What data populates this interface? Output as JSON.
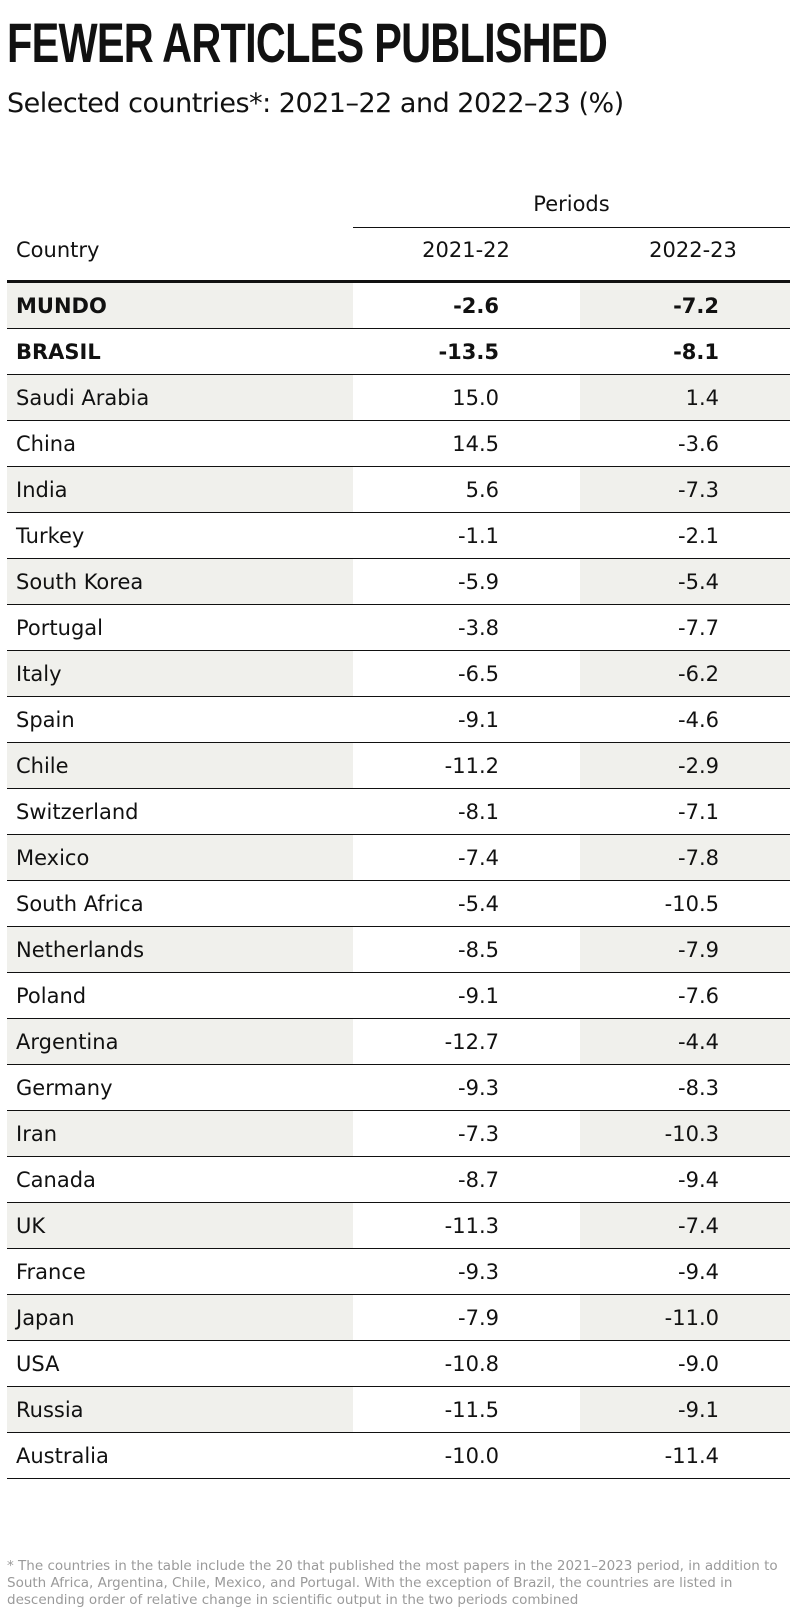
{
  "title": "FEWER ARTICLES PUBLISHED",
  "subtitle": "Selected countries*: 2021–22 and 2022–23 (%)",
  "footnote": "* The countries in the table include the 20 that published the most papers in the 2021–2023 period, in addition to South Africa, Argentina, Chile, Mexico, and Portugal. With the exception of Brazil, the countries are listed in descending order of relative change in scientific output in the two periods combined",
  "chart_data": {
    "type": "table",
    "title": "FEWER ARTICLES PUBLISHED",
    "subtitle": "Selected countries*: 2021–22 and 2022–23 (%)",
    "group_header": "Periods",
    "columns": [
      "Country",
      "2021-22",
      "2022-23"
    ],
    "rows": [
      {
        "country": "MUNDO",
        "p1": "-2.6",
        "p2": "-7.2",
        "bold": true
      },
      {
        "country": "BRASIL",
        "p1": "-13.5",
        "p2": "-8.1",
        "bold": true
      },
      {
        "country": "Saudi Arabia",
        "p1": "15.0",
        "p2": "1.4"
      },
      {
        "country": "China",
        "p1": "14.5",
        "p2": "-3.6"
      },
      {
        "country": "India",
        "p1": "5.6",
        "p2": "-7.3"
      },
      {
        "country": "Turkey",
        "p1": "-1.1",
        "p2": "-2.1"
      },
      {
        "country": "South Korea",
        "p1": "-5.9",
        "p2": "-5.4"
      },
      {
        "country": "Portugal",
        "p1": "-3.8",
        "p2": "-7.7"
      },
      {
        "country": "Italy",
        "p1": "-6.5",
        "p2": "-6.2"
      },
      {
        "country": "Spain",
        "p1": "-9.1",
        "p2": "-4.6"
      },
      {
        "country": "Chile",
        "p1": "-11.2",
        "p2": "-2.9"
      },
      {
        "country": "Switzerland",
        "p1": "-8.1",
        "p2": "-7.1"
      },
      {
        "country": "Mexico",
        "p1": "-7.4",
        "p2": "-7.8"
      },
      {
        "country": "South Africa",
        "p1": "-5.4",
        "p2": "-10.5"
      },
      {
        "country": "Netherlands",
        "p1": "-8.5",
        "p2": "-7.9"
      },
      {
        "country": "Poland",
        "p1": "-9.1",
        "p2": "-7.6"
      },
      {
        "country": "Argentina",
        "p1": "-12.7",
        "p2": "-4.4"
      },
      {
        "country": "Germany",
        "p1": "-9.3",
        "p2": "-8.3"
      },
      {
        "country": "Iran",
        "p1": "-7.3",
        "p2": "-10.3"
      },
      {
        "country": "Canada",
        "p1": "-8.7",
        "p2": "-9.4"
      },
      {
        "country": "UK",
        "p1": "-11.3",
        "p2": "-7.4"
      },
      {
        "country": "France",
        "p1": "-9.3",
        "p2": "-9.4"
      },
      {
        "country": "Japan",
        "p1": "-7.9",
        "p2": "-11.0"
      },
      {
        "country": "USA",
        "p1": "-10.8",
        "p2": "-9.0"
      },
      {
        "country": "Russia",
        "p1": "-11.5",
        "p2": "-9.1"
      },
      {
        "country": "Australia",
        "p1": "-10.0",
        "p2": "-11.4"
      }
    ]
  }
}
